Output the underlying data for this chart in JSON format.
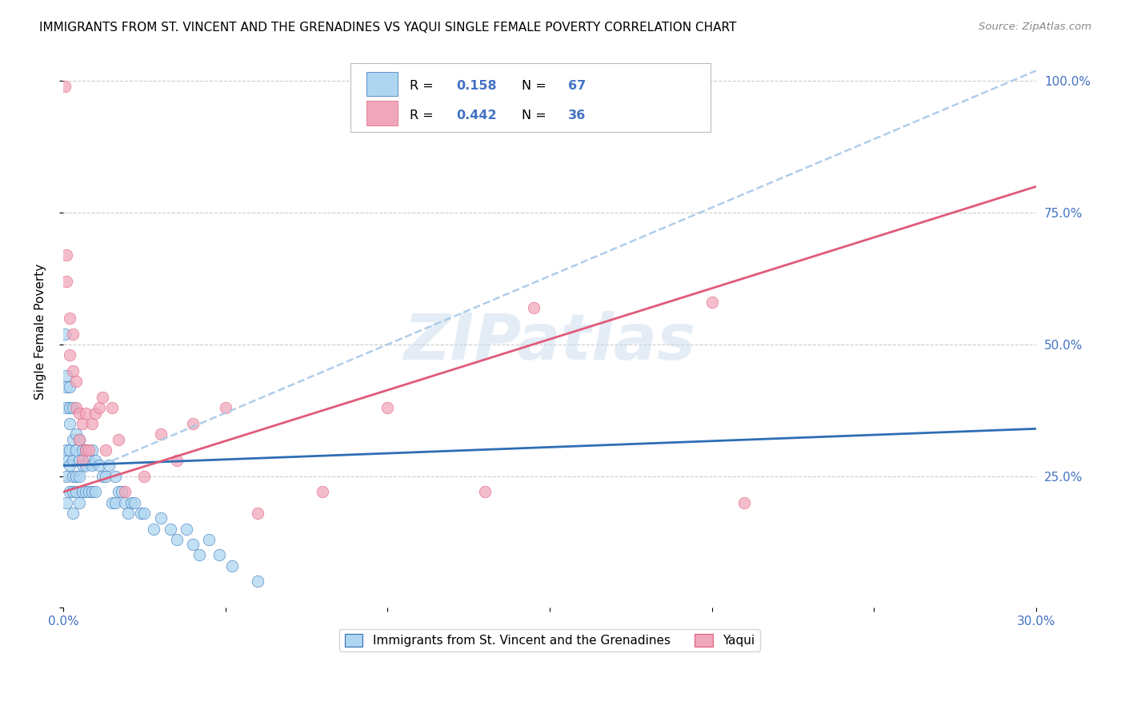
{
  "title": "IMMIGRANTS FROM ST. VINCENT AND THE GRENADINES VS YAQUI SINGLE FEMALE POVERTY CORRELATION CHART",
  "source": "Source: ZipAtlas.com",
  "ylabel": "Single Female Poverty",
  "legend_label_1": "Immigrants from St. Vincent and the Grenadines",
  "legend_label_2": "Yaqui",
  "R1": 0.158,
  "N1": 67,
  "R2": 0.442,
  "N2": 36,
  "color1": "#aed6f1",
  "color2": "#f1a7bb",
  "trend1_color": "#2e6db4",
  "trend2_color": "#e05a7a",
  "trend1_dashed_color": "#a8c8e8",
  "watermark": "ZIPatlas",
  "xlim": [
    0.0,
    0.3
  ],
  "ylim": [
    0.0,
    1.05
  ],
  "ytick_positions": [
    0.0,
    0.25,
    0.5,
    0.75,
    1.0
  ],
  "ytick_labels": [
    "",
    "25.0%",
    "50.0%",
    "75.0%",
    "100.0%"
  ],
  "blue_line_x": [
    0.0,
    0.3
  ],
  "blue_line_y": [
    0.27,
    0.34
  ],
  "dashed_line_x": [
    0.0,
    0.3
  ],
  "dashed_line_y": [
    0.24,
    1.02
  ],
  "pink_line_x": [
    0.0,
    0.3
  ],
  "pink_line_y": [
    0.22,
    0.8
  ],
  "blue_pts_x": [
    0.0005,
    0.001,
    0.001,
    0.001,
    0.001,
    0.001,
    0.001,
    0.0015,
    0.002,
    0.002,
    0.002,
    0.002,
    0.002,
    0.002,
    0.003,
    0.003,
    0.003,
    0.003,
    0.003,
    0.003,
    0.004,
    0.004,
    0.004,
    0.004,
    0.005,
    0.005,
    0.005,
    0.005,
    0.006,
    0.006,
    0.006,
    0.007,
    0.007,
    0.007,
    0.008,
    0.008,
    0.009,
    0.009,
    0.009,
    0.01,
    0.01,
    0.011,
    0.012,
    0.013,
    0.014,
    0.015,
    0.016,
    0.016,
    0.017,
    0.018,
    0.019,
    0.02,
    0.021,
    0.022,
    0.024,
    0.025,
    0.028,
    0.03,
    0.033,
    0.035,
    0.038,
    0.04,
    0.042,
    0.045,
    0.048,
    0.052,
    0.06
  ],
  "blue_pts_y": [
    0.52,
    0.44,
    0.42,
    0.38,
    0.3,
    0.25,
    0.2,
    0.28,
    0.42,
    0.38,
    0.35,
    0.3,
    0.27,
    0.22,
    0.38,
    0.32,
    0.28,
    0.25,
    0.22,
    0.18,
    0.33,
    0.3,
    0.25,
    0.22,
    0.32,
    0.28,
    0.25,
    0.2,
    0.3,
    0.27,
    0.22,
    0.3,
    0.27,
    0.22,
    0.28,
    0.22,
    0.3,
    0.27,
    0.22,
    0.28,
    0.22,
    0.27,
    0.25,
    0.25,
    0.27,
    0.2,
    0.25,
    0.2,
    0.22,
    0.22,
    0.2,
    0.18,
    0.2,
    0.2,
    0.18,
    0.18,
    0.15,
    0.17,
    0.15,
    0.13,
    0.15,
    0.12,
    0.1,
    0.13,
    0.1,
    0.08,
    0.05
  ],
  "pink_pts_x": [
    0.0005,
    0.001,
    0.001,
    0.002,
    0.002,
    0.003,
    0.003,
    0.004,
    0.004,
    0.005,
    0.005,
    0.006,
    0.006,
    0.007,
    0.007,
    0.008,
    0.009,
    0.01,
    0.011,
    0.012,
    0.013,
    0.015,
    0.017,
    0.019,
    0.025,
    0.03,
    0.035,
    0.04,
    0.05,
    0.06,
    0.08,
    0.1,
    0.13,
    0.145,
    0.2,
    0.21
  ],
  "pink_pts_y": [
    0.99,
    0.67,
    0.62,
    0.55,
    0.48,
    0.52,
    0.45,
    0.43,
    0.38,
    0.37,
    0.32,
    0.35,
    0.28,
    0.37,
    0.3,
    0.3,
    0.35,
    0.37,
    0.38,
    0.4,
    0.3,
    0.38,
    0.32,
    0.22,
    0.25,
    0.33,
    0.28,
    0.35,
    0.38,
    0.18,
    0.22,
    0.38,
    0.22,
    0.57,
    0.58,
    0.2
  ]
}
